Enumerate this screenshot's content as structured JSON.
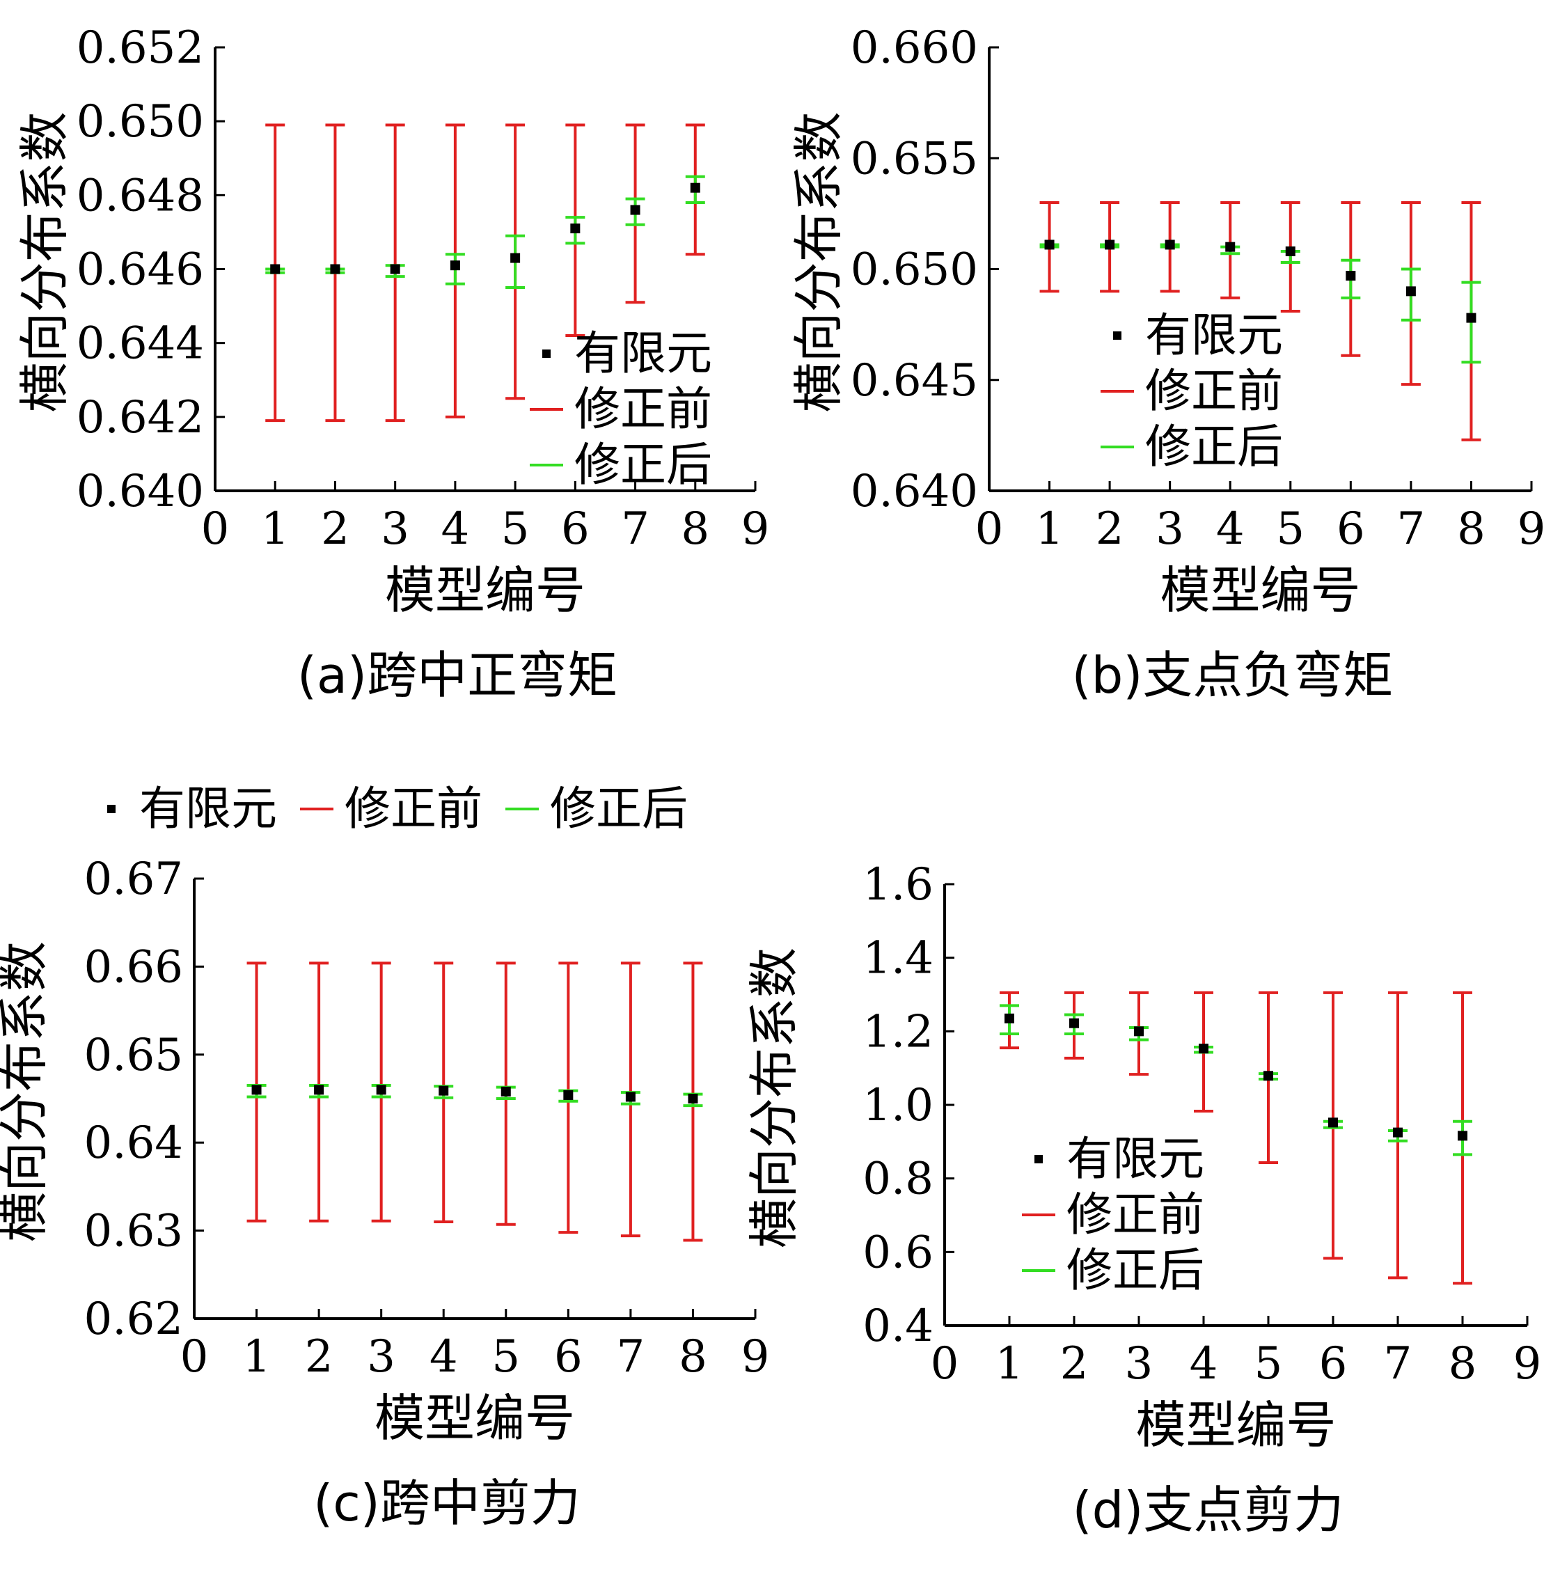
{
  "chart_data": [
    {
      "id": "a",
      "type": "errorbar",
      "caption": "(a)跨中正弯矩",
      "xlabel": "模型编号",
      "ylabel": "横向分布系数",
      "xlim": [
        0,
        9
      ],
      "xticks": [
        "0",
        "1",
        "2",
        "3",
        "4",
        "5",
        "6",
        "7",
        "8",
        "9"
      ],
      "ylim": [
        0.64,
        0.652
      ],
      "yticks": [
        "0.640",
        "0.642",
        "0.644",
        "0.646",
        "0.648",
        "0.650",
        "0.652"
      ],
      "legend": [
        "有限元",
        "修正前",
        "修正后"
      ],
      "legend_position": "lower-right",
      "x": [
        1,
        2,
        3,
        4,
        5,
        6,
        7,
        8
      ],
      "fem": [
        0.646,
        0.646,
        0.646,
        0.6461,
        0.6463,
        0.6471,
        0.6476,
        0.6482
      ],
      "before": [
        [
          0.6419,
          0.6499
        ],
        [
          0.6419,
          0.6499
        ],
        [
          0.6419,
          0.6499
        ],
        [
          0.642,
          0.6499
        ],
        [
          0.6425,
          0.6499
        ],
        [
          0.6442,
          0.6499
        ],
        [
          0.6451,
          0.6499
        ],
        [
          0.6464,
          0.6499
        ]
      ],
      "after": [
        [
          0.6459,
          0.646
        ],
        [
          0.6459,
          0.646
        ],
        [
          0.6458,
          0.6461
        ],
        [
          0.6456,
          0.6464
        ],
        [
          0.6455,
          0.6469
        ],
        [
          0.6467,
          0.6474
        ],
        [
          0.6472,
          0.6479
        ],
        [
          0.6478,
          0.6485
        ]
      ]
    },
    {
      "id": "b",
      "type": "errorbar",
      "caption": "(b)支点负弯矩",
      "xlabel": "模型编号",
      "ylabel": "横向分布系数",
      "xlim": [
        0,
        9
      ],
      "xticks": [
        "0",
        "1",
        "2",
        "3",
        "4",
        "5",
        "6",
        "7",
        "8",
        "9"
      ],
      "ylim": [
        0.64,
        0.66
      ],
      "yticks": [
        "0.640",
        "0.645",
        "0.650",
        "0.655",
        "0.660"
      ],
      "legend": [
        "有限元",
        "修正前",
        "修正后"
      ],
      "legend_position": "lower-left",
      "x": [
        1,
        2,
        3,
        4,
        5,
        6,
        7,
        8
      ],
      "fem": [
        0.6511,
        0.6511,
        0.6511,
        0.651,
        0.6508,
        0.6497,
        0.649,
        0.6478
      ],
      "before": [
        [
          0.649,
          0.653
        ],
        [
          0.649,
          0.653
        ],
        [
          0.649,
          0.653
        ],
        [
          0.6487,
          0.653
        ],
        [
          0.6481,
          0.653
        ],
        [
          0.6461,
          0.653
        ],
        [
          0.6448,
          0.653
        ],
        [
          0.6423,
          0.653
        ]
      ],
      "after": [
        [
          0.651,
          0.6511
        ],
        [
          0.651,
          0.6511
        ],
        [
          0.651,
          0.6511
        ],
        [
          0.6507,
          0.651
        ],
        [
          0.6503,
          0.6508
        ],
        [
          0.6487,
          0.6504
        ],
        [
          0.6477,
          0.65
        ],
        [
          0.6458,
          0.6494
        ]
      ]
    },
    {
      "id": "c",
      "type": "errorbar",
      "caption": "(c)跨中剪力",
      "xlabel": "模型编号",
      "ylabel": "横向分布系数",
      "xlim": [
        0,
        9
      ],
      "xticks": [
        "0",
        "1",
        "2",
        "3",
        "4",
        "5",
        "6",
        "7",
        "8",
        "9"
      ],
      "ylim": [
        0.62,
        0.67
      ],
      "yticks": [
        "0.62",
        "0.63",
        "0.64",
        "0.65",
        "0.66",
        "0.67"
      ],
      "legend": [
        "有限元",
        "修正前",
        "修正后"
      ],
      "legend_position": "top",
      "x": [
        1,
        2,
        3,
        4,
        5,
        6,
        7,
        8
      ],
      "fem": [
        0.646,
        0.646,
        0.646,
        0.6459,
        0.6458,
        0.6454,
        0.6452,
        0.645
      ],
      "before": [
        [
          0.6311,
          0.6604
        ],
        [
          0.6311,
          0.6604
        ],
        [
          0.6311,
          0.6604
        ],
        [
          0.631,
          0.6604
        ],
        [
          0.6307,
          0.6604
        ],
        [
          0.6298,
          0.6604
        ],
        [
          0.6294,
          0.6604
        ],
        [
          0.6289,
          0.6604
        ]
      ],
      "after": [
        [
          0.6452,
          0.6465
        ],
        [
          0.6452,
          0.6465
        ],
        [
          0.6452,
          0.6465
        ],
        [
          0.6451,
          0.6464
        ],
        [
          0.645,
          0.6463
        ],
        [
          0.6447,
          0.6459
        ],
        [
          0.6444,
          0.6457
        ],
        [
          0.6442,
          0.6455
        ]
      ]
    },
    {
      "id": "d",
      "type": "errorbar",
      "caption": "(d)支点剪力",
      "xlabel": "模型编号",
      "ylabel": "横向分布系数",
      "xlim": [
        0,
        9
      ],
      "xticks": [
        "0",
        "1",
        "2",
        "3",
        "4",
        "5",
        "6",
        "7",
        "8",
        "9"
      ],
      "ylim": [
        0.4,
        1.6
      ],
      "yticks": [
        "0.4",
        "0.6",
        "0.8",
        "1.0",
        "1.2",
        "1.4",
        "1.6"
      ],
      "legend": [
        "有限元",
        "修正前",
        "修正后"
      ],
      "legend_position": "lower-left",
      "x": [
        1,
        2,
        3,
        4,
        5,
        6,
        7,
        8
      ],
      "fem": [
        1.235,
        1.222,
        1.2,
        1.153,
        1.079,
        0.952,
        0.925,
        0.916
      ],
      "before": [
        [
          1.155,
          1.305
        ],
        [
          1.127,
          1.305
        ],
        [
          1.083,
          1.305
        ],
        [
          0.983,
          1.305
        ],
        [
          0.843,
          1.305
        ],
        [
          0.583,
          1.305
        ],
        [
          0.53,
          1.305
        ],
        [
          0.515,
          1.305
        ]
      ],
      "after": [
        [
          1.193,
          1.27
        ],
        [
          1.193,
          1.245
        ],
        [
          1.177,
          1.21
        ],
        [
          1.143,
          1.157
        ],
        [
          1.07,
          1.085
        ],
        [
          0.938,
          0.955
        ],
        [
          0.902,
          0.93
        ],
        [
          0.865,
          0.955
        ]
      ]
    }
  ],
  "colors": {
    "fem": "#000000",
    "before": "#e02020",
    "after": "#33dd22",
    "axis": "#000000"
  }
}
